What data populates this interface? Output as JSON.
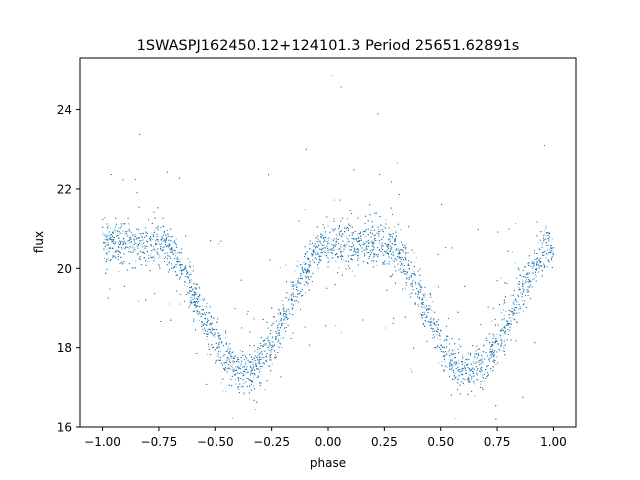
{
  "chart_data": {
    "type": "scatter",
    "title": "1SWASPJ162450.12+124101.3 Period 25651.62891s",
    "xlabel": "phase",
    "ylabel": "flux",
    "xlim": [
      -1.1,
      1.1
    ],
    "ylim": [
      16.0,
      25.3
    ],
    "xticks": [
      -1.0,
      -0.75,
      -0.5,
      -0.25,
      0.0,
      0.25,
      0.5,
      0.75,
      1.0
    ],
    "xtick_labels": [
      "−1.00",
      "−0.75",
      "−0.50",
      "−0.25",
      "0.00",
      "0.25",
      "0.50",
      "0.75",
      "1.00"
    ],
    "yticks": [
      16,
      18,
      20,
      22,
      24
    ],
    "ytick_labels": [
      "16",
      "18",
      "20",
      "22",
      "24"
    ],
    "grid": false,
    "marker_color": "#1f77b4",
    "series": [
      {
        "phase_range": [
          -1.0,
          1.0
        ],
        "baseline_flux": 20.6,
        "eclipses": [
          {
            "phase": -0.37,
            "min_flux": 17.4
          },
          {
            "phase": 0.63,
            "min_flux": 17.4
          }
        ],
        "profile": [
          {
            "x": -0.37,
            "y": 17.4
          },
          {
            "x": -0.55,
            "y": 18.3
          },
          {
            "x": -0.65,
            "y": 19.3
          },
          {
            "x": -0.73,
            "y": 20.6
          },
          {
            "x": -0.2,
            "y": 18.3
          },
          {
            "x": -0.1,
            "y": 19.3
          },
          {
            "x": -0.02,
            "y": 20.6
          },
          {
            "x": 0.63,
            "y": 17.4
          },
          {
            "x": 0.45,
            "y": 18.3
          },
          {
            "x": 0.35,
            "y": 19.3
          },
          {
            "x": 0.27,
            "y": 20.6
          },
          {
            "x": 0.8,
            "y": 18.3
          },
          {
            "x": 0.9,
            "y": 19.3
          },
          {
            "x": 0.98,
            "y": 20.6
          }
        ]
      }
    ]
  }
}
